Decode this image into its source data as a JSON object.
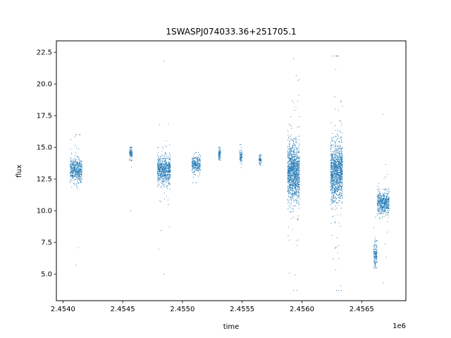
{
  "chart_data": {
    "type": "scatter",
    "title": "1SWASPJ074033.36+251705.1",
    "xlabel": "time",
    "ylabel": "flux",
    "x_offset_label": "1e6",
    "xlim": [
      2453945,
      2456870
    ],
    "ylim": [
      2.9,
      23.4
    ],
    "x_ticks": [
      2454000,
      2454500,
      2455000,
      2455500,
      2456000,
      2456500
    ],
    "x_tick_labels": [
      "2.4540",
      "2.4545",
      "2.4550",
      "2.4555",
      "2.4560",
      "2.4565"
    ],
    "y_ticks": [
      5.0,
      7.5,
      10.0,
      12.5,
      15.0,
      17.5,
      20.0,
      22.5
    ],
    "y_tick_labels": [
      "5.0",
      "7.5",
      "10.0",
      "12.5",
      "15.0",
      "17.5",
      "20.0",
      "22.5"
    ],
    "grid": false,
    "marker_color": "#1f77b4",
    "observing_seasons": [
      {
        "x_start": 2454060,
        "x_end": 2454160,
        "median_flux": 13.2,
        "spread": 0.8,
        "flux_min": 5.7,
        "flux_max": 16.0
      },
      {
        "x_start": 2454555,
        "x_end": 2454580,
        "median_flux": 14.5,
        "spread": 0.5,
        "flux_min": 10.0,
        "flux_max": 15.0
      },
      {
        "x_start": 2454790,
        "x_end": 2454900,
        "median_flux": 13.2,
        "spread": 1.0,
        "flux_min": 5.0,
        "flux_max": 21.8
      },
      {
        "x_start": 2455080,
        "x_end": 2455150,
        "median_flux": 13.6,
        "spread": 0.6,
        "flux_min": 12.2,
        "flux_max": 14.6
      },
      {
        "x_start": 2455300,
        "x_end": 2455320,
        "median_flux": 14.5,
        "spread": 0.4,
        "flux_min": 14.0,
        "flux_max": 15.0
      },
      {
        "x_start": 2455480,
        "x_end": 2455500,
        "median_flux": 14.3,
        "spread": 0.5,
        "flux_min": 13.4,
        "flux_max": 15.2
      },
      {
        "x_start": 2455640,
        "x_end": 2455660,
        "median_flux": 14.0,
        "spread": 0.3,
        "flux_min": 13.6,
        "flux_max": 14.4
      },
      {
        "x_start": 2455880,
        "x_end": 2455980,
        "median_flux": 13.0,
        "spread": 2.0,
        "flux_min": 3.7,
        "flux_max": 22.0
      },
      {
        "x_start": 2456240,
        "x_end": 2456340,
        "median_flux": 13.0,
        "spread": 2.0,
        "flux_min": 3.7,
        "flux_max": 22.2
      },
      {
        "x_start": 2456600,
        "x_end": 2456630,
        "median_flux": 6.5,
        "spread": 0.8,
        "flux_min": 5.5,
        "flux_max": 9.5
      },
      {
        "x_start": 2456630,
        "x_end": 2456730,
        "median_flux": 10.6,
        "spread": 0.8,
        "flux_min": 4.3,
        "flux_max": 17.6
      }
    ]
  }
}
